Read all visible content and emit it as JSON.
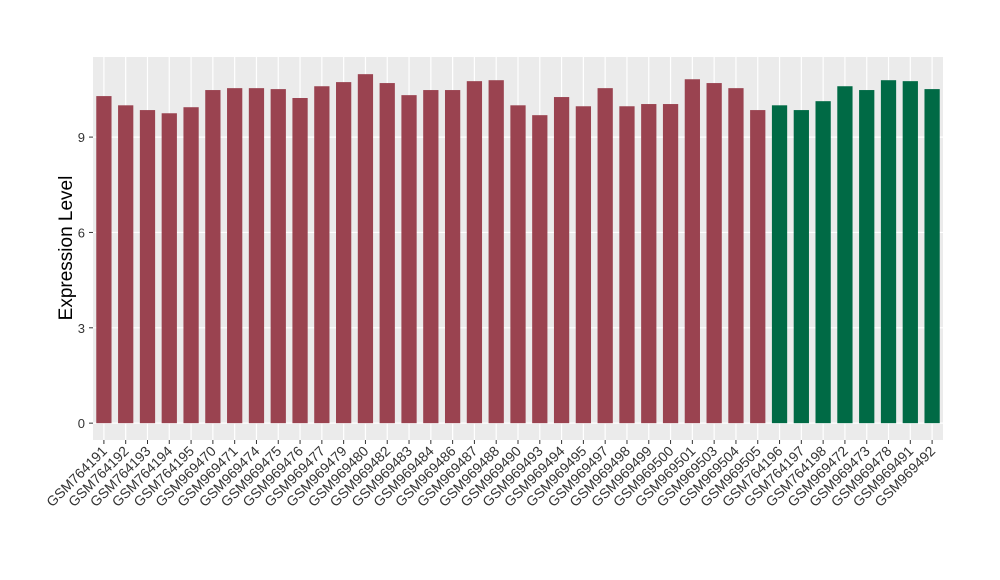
{
  "chart_data": {
    "type": "bar",
    "y_label": "Expression Level",
    "categories": [
      "GSM764191",
      "GSM764192",
      "GSM764193",
      "GSM764194",
      "GSM764195",
      "GSM969470",
      "GSM969471",
      "GSM969474",
      "GSM969475",
      "GSM969476",
      "GSM969477",
      "GSM969479",
      "GSM969480",
      "GSM969482",
      "GSM969483",
      "GSM969484",
      "GSM969486",
      "GSM969487",
      "GSM969488",
      "GSM969490",
      "GSM969493",
      "GSM969494",
      "GSM969495",
      "GSM969497",
      "GSM969498",
      "GSM969499",
      "GSM969500",
      "GSM969501",
      "GSM969503",
      "GSM969504",
      "GSM969505",
      "GSM764196",
      "GSM764197",
      "GSM764198",
      "GSM969472",
      "GSM969473",
      "GSM969478",
      "GSM969491",
      "GSM969492"
    ],
    "values": [
      10.29,
      10.0,
      9.85,
      9.75,
      9.94,
      10.48,
      10.54,
      10.54,
      10.51,
      10.23,
      10.6,
      10.73,
      10.98,
      10.7,
      10.32,
      10.48,
      10.48,
      10.76,
      10.79,
      10.0,
      9.69,
      10.26,
      9.97,
      10.54,
      9.97,
      10.04,
      10.04,
      10.82,
      10.7,
      10.54,
      9.85,
      10.0,
      9.85,
      10.13,
      10.6,
      10.48,
      10.79,
      10.76,
      10.51
    ],
    "colors": [
      "#9a4350",
      "#9a4350",
      "#9a4350",
      "#9a4350",
      "#9a4350",
      "#9a4350",
      "#9a4350",
      "#9a4350",
      "#9a4350",
      "#9a4350",
      "#9a4350",
      "#9a4350",
      "#9a4350",
      "#9a4350",
      "#9a4350",
      "#9a4350",
      "#9a4350",
      "#9a4350",
      "#9a4350",
      "#9a4350",
      "#9a4350",
      "#9a4350",
      "#9a4350",
      "#9a4350",
      "#9a4350",
      "#9a4350",
      "#9a4350",
      "#9a4350",
      "#9a4350",
      "#9a4350",
      "#9a4350",
      "#006a45",
      "#006a45",
      "#006a45",
      "#006a45",
      "#006a45",
      "#006a45",
      "#006a45",
      "#006a45"
    ],
    "ylim": [
      -0.53,
      11.52
    ],
    "yticks": [
      0,
      3,
      6,
      9
    ],
    "grid": true
  }
}
